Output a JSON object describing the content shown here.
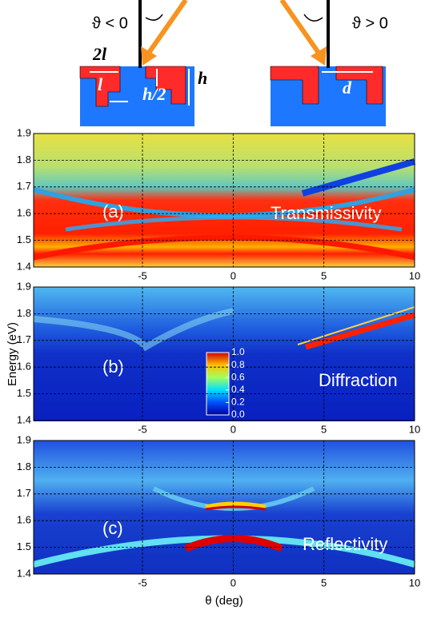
{
  "schematic": {
    "left_angle": "ϑ < 0",
    "right_angle": "ϑ > 0",
    "width_label": "2l",
    "gap_label": "l",
    "half_height_label": "h/2",
    "height_label": "h",
    "period_label": "d"
  },
  "ylabel": "Energy (eV)",
  "xlabel": "θ (deg)",
  "chart_data": [
    {
      "type": "heatmap",
      "panel": "(a)",
      "title": "Transmissivity",
      "xlim": [
        -11,
        10
      ],
      "ylim": [
        1.4,
        1.9
      ],
      "xticks": [
        -5,
        0,
        5,
        10
      ],
      "yticks": [
        1.4,
        1.5,
        1.6,
        1.7,
        1.8,
        1.9
      ],
      "grid": true
    },
    {
      "type": "heatmap",
      "panel": "(b)",
      "title": "Diffraction",
      "xlim": [
        -11,
        10
      ],
      "ylim": [
        1.4,
        1.9
      ],
      "xticks": [
        -5,
        0,
        5,
        10
      ],
      "yticks": [
        1.4,
        1.5,
        1.6,
        1.7,
        1.8,
        1.9
      ],
      "grid": true,
      "colorbar_lim": [
        0,
        1
      ],
      "colorbar_ticks": [
        {
          "value": 1,
          "label": "1.0"
        },
        0.8,
        0.6,
        0.4,
        0.2,
        {
          "value": 0,
          "label": "0.0"
        }
      ]
    },
    {
      "type": "heatmap",
      "panel": "(c)",
      "title": "Reflectivity",
      "xlim": [
        -11,
        10
      ],
      "ylim": [
        1.4,
        1.9
      ],
      "xticks": [
        -5,
        0,
        5,
        10
      ],
      "yticks": [
        1.4,
        1.5,
        1.6,
        1.7,
        1.8,
        1.9
      ],
      "grid": true
    }
  ]
}
